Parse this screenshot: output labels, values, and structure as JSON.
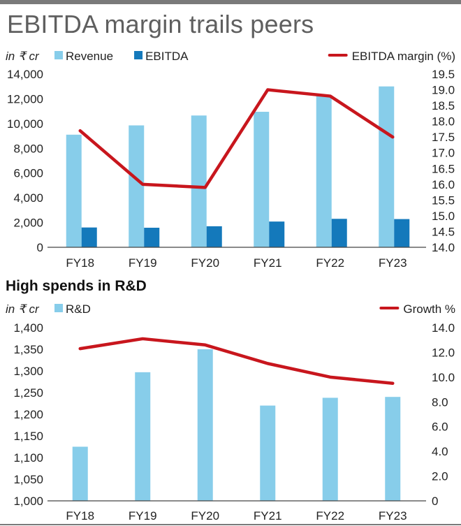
{
  "title": "EBITDA margin trails peers",
  "chart_data": [
    {
      "type": "bar",
      "categories": [
        "FY18",
        "FY19",
        "FY20",
        "FY21",
        "FY22",
        "FY23"
      ],
      "unit_label": "in ₹ cr",
      "series": [
        {
          "name": "Revenue",
          "type": "bar",
          "axis": "left",
          "color": "#87cdea",
          "values": [
            9100,
            9850,
            10650,
            10950,
            12250,
            13000
          ]
        },
        {
          "name": "EBITDA",
          "type": "bar",
          "axis": "left",
          "color": "#1479bb",
          "values": [
            1600,
            1580,
            1700,
            2080,
            2300,
            2280
          ]
        },
        {
          "name": "EBITDA margin (%)",
          "type": "line",
          "axis": "right",
          "color": "#c8161d",
          "values": [
            17.7,
            16.0,
            15.9,
            19.0,
            18.8,
            17.5
          ]
        }
      ],
      "ylim_left": [
        0,
        14000
      ],
      "yticks_left": [
        "0",
        "2,000",
        "4,000",
        "6,000",
        "8,000",
        "10,000",
        "12,000",
        "14,000"
      ],
      "ylim_right": [
        14.0,
        19.5
      ],
      "yticks_right": [
        "14.0",
        "14.5",
        "15.0",
        "15.5",
        "16.0",
        "16.5",
        "17.0",
        "17.5",
        "18.0",
        "18.5",
        "19.0",
        "19.5"
      ],
      "grid": false,
      "legend": "top"
    },
    {
      "type": "bar",
      "title": "High spends in R&D",
      "categories": [
        "FY18",
        "FY19",
        "FY20",
        "FY21",
        "FY22",
        "FY23"
      ],
      "unit_label": "in ₹ cr",
      "series": [
        {
          "name": "R&D",
          "type": "bar",
          "axis": "left",
          "color": "#87cdea",
          "values": [
            1125,
            1297,
            1350,
            1220,
            1238,
            1240
          ]
        },
        {
          "name": "Growth %",
          "type": "line",
          "axis": "right",
          "color": "#c8161d",
          "values": [
            12.3,
            13.1,
            12.6,
            11.1,
            10.0,
            9.5
          ]
        }
      ],
      "ylim_left": [
        1000,
        1400
      ],
      "yticks_left": [
        "1,000",
        "1,050",
        "1,100",
        "1,150",
        "1,200",
        "1,250",
        "1,300",
        "1,350",
        "1,400"
      ],
      "ylim_right": [
        0,
        14
      ],
      "yticks_right": [
        "0",
        "2.0",
        "4.0",
        "6.0",
        "8.0",
        "10.0",
        "12.0",
        "14.0"
      ],
      "grid": false,
      "legend": "top"
    }
  ]
}
